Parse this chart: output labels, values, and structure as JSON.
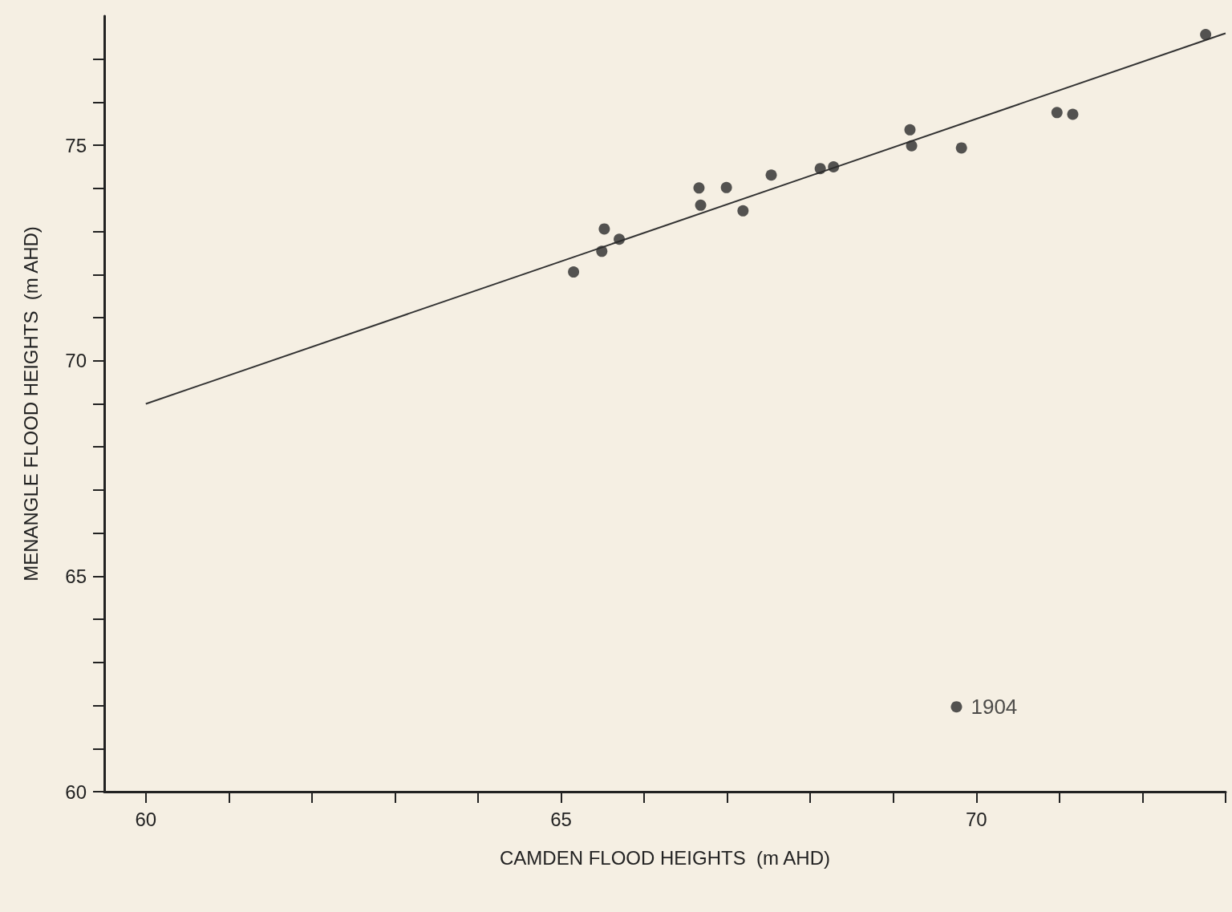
{
  "chart_data": {
    "type": "scatter",
    "xlabel": "CAMDEN FLOOD HEIGHTS  (m AHD)",
    "ylabel": "MENANGLE FLOOD HEIGHTS  (m AHD)",
    "xlim": [
      59.5,
      73
    ],
    "ylim": [
      60,
      78
    ],
    "xticks": [
      60,
      {
        "value": 61,
        "label": null
      },
      {
        "value": 62,
        "label": null
      },
      {
        "value": 63,
        "label": null
      },
      {
        "value": 64,
        "label": null
      },
      65,
      {
        "value": 66,
        "label": null
      },
      {
        "value": 67,
        "label": null
      },
      {
        "value": 68,
        "label": null
      },
      {
        "value": 69,
        "label": null
      },
      70,
      {
        "value": 71,
        "label": null
      },
      {
        "value": 72,
        "label": null
      },
      {
        "value": 73,
        "label": null
      }
    ],
    "yticks": [
      60,
      {
        "value": 61,
        "label": null
      },
      {
        "value": 62,
        "label": null
      },
      {
        "value": 63,
        "label": null
      },
      {
        "value": 64,
        "label": null
      },
      65,
      {
        "value": 66,
        "label": null
      },
      {
        "value": 67,
        "label": null
      },
      {
        "value": 68,
        "label": null
      },
      {
        "value": 69,
        "label": null
      },
      70,
      {
        "value": 71,
        "label": null
      },
      {
        "value": 72,
        "label": null
      },
      {
        "value": 73,
        "label": null
      },
      {
        "value": 74,
        "label": null
      },
      75,
      {
        "value": 76,
        "label": null
      },
      {
        "value": 77,
        "label": null
      }
    ],
    "grid": false,
    "marker": "circle",
    "series": [
      {
        "color": "#2b2b2b",
        "x": [
          65.15,
          65.49,
          65.52,
          65.7,
          66.66,
          66.68,
          66.99,
          67.19,
          67.53,
          68.12,
          68.28,
          69.2,
          69.22,
          69.82,
          70.97,
          71.16,
          72.76,
          69.76
        ],
        "values": [
          72.06,
          72.54,
          73.06,
          72.82,
          74.01,
          73.61,
          74.02,
          73.48,
          74.31,
          74.46,
          74.5,
          75.36,
          74.99,
          74.94,
          75.76,
          75.72,
          77.57,
          61.97
        ]
      },
      {
        "type": "line",
        "color": "#333333",
        "x": [
          60,
          73
        ],
        "values": [
          69.0,
          77.6
        ],
        "marker": "none",
        "line_style": "solid"
      }
    ],
    "annotations": [
      {
        "text": "1904",
        "x": 69.76,
        "y": 61.97
      }
    ]
  }
}
